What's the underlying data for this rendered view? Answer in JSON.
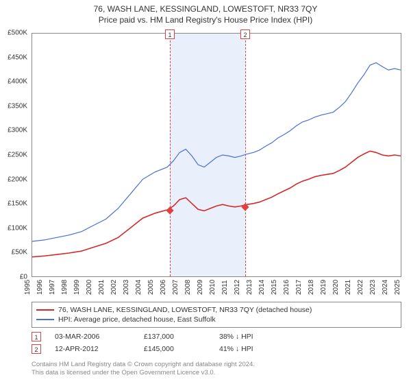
{
  "title": "76, WASH LANE, KESSINGLAND, LOWESTOFT, NR33 7QY",
  "subtitle": "Price paid vs. HM Land Registry's House Price Index (HPI)",
  "chart": {
    "type": "line",
    "ylim": [
      0,
      500000
    ],
    "ytick_step": 50000,
    "ylabels": [
      "£0",
      "£50K",
      "£100K",
      "£150K",
      "£200K",
      "£250K",
      "£300K",
      "£350K",
      "£400K",
      "£450K",
      "£500K"
    ],
    "x_start_year": 1995,
    "x_end_year": 2025,
    "xticks": [
      1995,
      1996,
      1997,
      1998,
      1999,
      2000,
      2001,
      2002,
      2003,
      2004,
      2005,
      2006,
      2007,
      2008,
      2009,
      2010,
      2011,
      2012,
      2013,
      2014,
      2015,
      2016,
      2017,
      2018,
      2019,
      2020,
      2021,
      2022,
      2023,
      2024,
      2025
    ],
    "background_color": "#ffffff",
    "border_color": "#888888",
    "band": {
      "start_year": 2006.17,
      "end_year": 2012.28,
      "color": "#eaf0fb"
    },
    "series": [
      {
        "name": "property",
        "label": "76, WASH LANE, KESSINGLAND, LOWESTOFT, NR33 7QY (detached house)",
        "color": "#d62728",
        "line_width": 1.6,
        "points": [
          [
            1995,
            40000
          ],
          [
            1996,
            42000
          ],
          [
            1997,
            45000
          ],
          [
            1998,
            48000
          ],
          [
            1999,
            52000
          ],
          [
            2000,
            60000
          ],
          [
            2001,
            68000
          ],
          [
            2002,
            80000
          ],
          [
            2003,
            100000
          ],
          [
            2004,
            120000
          ],
          [
            2005,
            130000
          ],
          [
            2006,
            137000
          ],
          [
            2006.5,
            145000
          ],
          [
            2007,
            158000
          ],
          [
            2007.5,
            162000
          ],
          [
            2008,
            150000
          ],
          [
            2008.5,
            138000
          ],
          [
            2009,
            135000
          ],
          [
            2009.5,
            140000
          ],
          [
            2010,
            145000
          ],
          [
            2010.5,
            148000
          ],
          [
            2011,
            145000
          ],
          [
            2011.5,
            143000
          ],
          [
            2012,
            145000
          ],
          [
            2012.5,
            148000
          ],
          [
            2013,
            150000
          ],
          [
            2013.5,
            153000
          ],
          [
            2014,
            158000
          ],
          [
            2014.5,
            163000
          ],
          [
            2015,
            170000
          ],
          [
            2015.5,
            176000
          ],
          [
            2016,
            182000
          ],
          [
            2016.5,
            190000
          ],
          [
            2017,
            196000
          ],
          [
            2017.5,
            200000
          ],
          [
            2018,
            205000
          ],
          [
            2018.5,
            208000
          ],
          [
            2019,
            210000
          ],
          [
            2019.5,
            212000
          ],
          [
            2020,
            218000
          ],
          [
            2020.5,
            225000
          ],
          [
            2021,
            235000
          ],
          [
            2021.5,
            245000
          ],
          [
            2022,
            252000
          ],
          [
            2022.5,
            258000
          ],
          [
            2023,
            255000
          ],
          [
            2023.5,
            250000
          ],
          [
            2024,
            248000
          ],
          [
            2024.5,
            250000
          ],
          [
            2025,
            248000
          ]
        ]
      },
      {
        "name": "hpi",
        "label": "HPI: Average price, detached house, East Suffolk",
        "color": "#4a6fd6",
        "line_width": 1.2,
        "points": [
          [
            1995,
            72000
          ],
          [
            1996,
            75000
          ],
          [
            1997,
            80000
          ],
          [
            1998,
            85000
          ],
          [
            1999,
            92000
          ],
          [
            2000,
            105000
          ],
          [
            2001,
            118000
          ],
          [
            2002,
            140000
          ],
          [
            2003,
            170000
          ],
          [
            2004,
            200000
          ],
          [
            2005,
            215000
          ],
          [
            2006,
            225000
          ],
          [
            2006.5,
            238000
          ],
          [
            2007,
            255000
          ],
          [
            2007.5,
            262000
          ],
          [
            2008,
            248000
          ],
          [
            2008.5,
            230000
          ],
          [
            2009,
            225000
          ],
          [
            2009.5,
            235000
          ],
          [
            2010,
            245000
          ],
          [
            2010.5,
            250000
          ],
          [
            2011,
            248000
          ],
          [
            2011.5,
            245000
          ],
          [
            2012,
            248000
          ],
          [
            2012.5,
            252000
          ],
          [
            2013,
            255000
          ],
          [
            2013.5,
            260000
          ],
          [
            2014,
            268000
          ],
          [
            2014.5,
            275000
          ],
          [
            2015,
            285000
          ],
          [
            2015.5,
            292000
          ],
          [
            2016,
            300000
          ],
          [
            2016.5,
            310000
          ],
          [
            2017,
            318000
          ],
          [
            2017.5,
            322000
          ],
          [
            2018,
            328000
          ],
          [
            2018.5,
            332000
          ],
          [
            2019,
            335000
          ],
          [
            2019.5,
            338000
          ],
          [
            2020,
            348000
          ],
          [
            2020.5,
            360000
          ],
          [
            2021,
            378000
          ],
          [
            2021.5,
            398000
          ],
          [
            2022,
            415000
          ],
          [
            2022.5,
            435000
          ],
          [
            2023,
            440000
          ],
          [
            2023.5,
            432000
          ],
          [
            2024,
            425000
          ],
          [
            2024.5,
            428000
          ],
          [
            2025,
            425000
          ]
        ]
      }
    ],
    "sale_markers": [
      {
        "num": "1",
        "year": 2006.17,
        "value": 137000
      },
      {
        "num": "2",
        "year": 2012.28,
        "value": 145000
      }
    ]
  },
  "legend": {
    "items": [
      {
        "color": "#d62728",
        "label": "76, WASH LANE, KESSINGLAND, LOWESTOFT, NR33 7QY (detached house)"
      },
      {
        "color": "#4a6fd6",
        "label": "HPI: Average price, detached house, East Suffolk"
      }
    ]
  },
  "sales": [
    {
      "num": "1",
      "date": "03-MAR-2006",
      "price": "£137,000",
      "diff": "38% ↓ HPI"
    },
    {
      "num": "2",
      "date": "12-APR-2012",
      "price": "£145,000",
      "diff": "41% ↓ HPI"
    }
  ],
  "footer_line1": "Contains HM Land Registry data © Crown copyright and database right 2024.",
  "footer_line2": "This data is licensed under the Open Government Licence v3.0."
}
